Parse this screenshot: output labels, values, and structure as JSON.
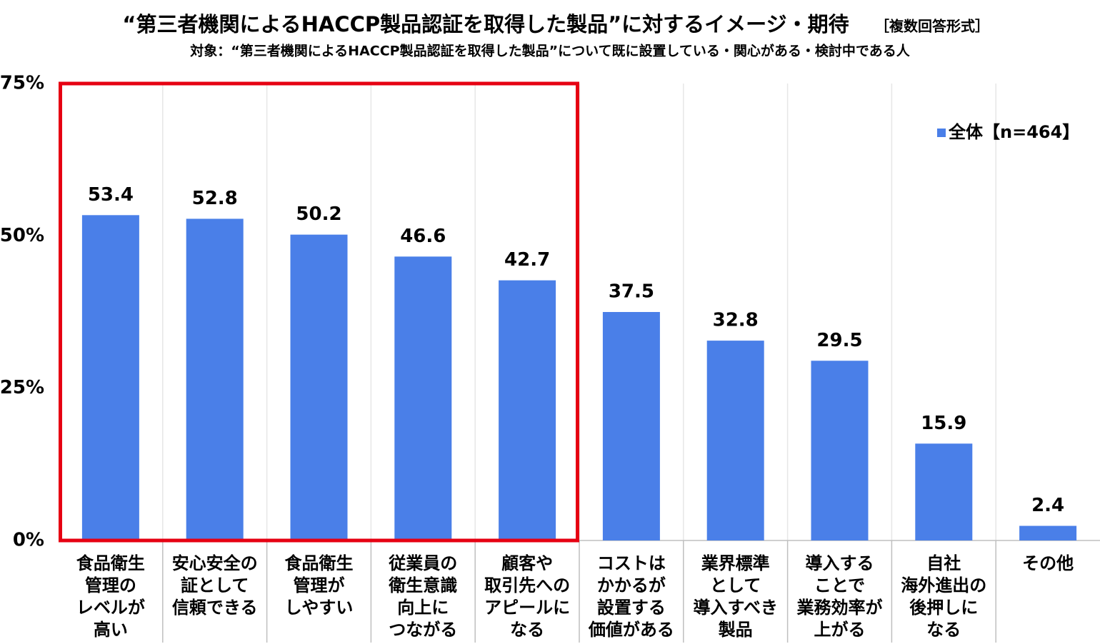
{
  "chart_data": {
    "type": "bar",
    "title": "“第三者機関によるHACCP製品認証を取得した製品”に対するイメージ・期待",
    "title_note": "［複数回答形式］",
    "subtitle": "対象：“第三者機関によるHACCP製品認証を取得した製品”について既に設置している・関心がある・検討中である人",
    "categories": [
      "食品衛生\n管理の\nレベルが\n高い",
      "安心安全の\n証として\n信頼できる",
      "食品衛生\n管理が\nしやすい",
      "従業員の\n衛生意識\n向上に\nつながる",
      "顧客や\n取引先への\nアピールに\nなる",
      "コストは\nかかるが\n設置する\n価値がある",
      "業界標準\nとして\n導入すべき\n製品",
      "導入する\nことで\n業務効率が\n上がる",
      "自社\n海外進出の\n後押しに\nなる",
      "その他"
    ],
    "label_colors": [
      "#e60012",
      "#e60012",
      "#e60012",
      "#e60012",
      "#e60012",
      "#000000",
      "#000000",
      "#000000",
      "#000000",
      "#000000"
    ],
    "highlight_color": "#e60012",
    "series": [
      {
        "name": "全体【n=464】",
        "color": "#4a7fe8",
        "values": [
          53.4,
          52.8,
          50.2,
          46.6,
          42.7,
          37.5,
          32.8,
          29.5,
          15.9,
          2.4
        ]
      }
    ],
    "ylim": [
      0,
      75
    ],
    "yticks": [
      {
        "value": 0,
        "label": "0%"
      },
      {
        "value": 25,
        "label": "25%"
      },
      {
        "value": 50,
        "label": "50%"
      },
      {
        "value": 75,
        "label": "75%"
      }
    ],
    "legend": "upper right"
  }
}
